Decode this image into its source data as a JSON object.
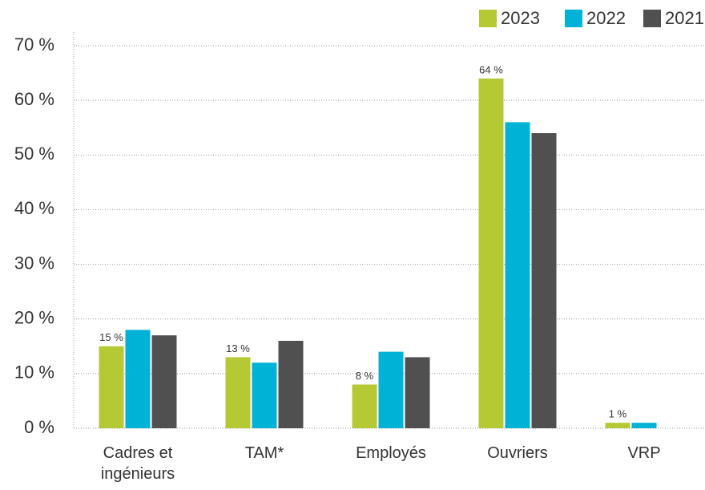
{
  "chart_data": {
    "type": "bar",
    "categories": [
      "Cadres et ingénieurs",
      "TAM*",
      "Employés",
      "Ouvriers",
      "VRP"
    ],
    "series": [
      {
        "name": "2023",
        "color": "#b5c935",
        "values": [
          15,
          13,
          8,
          64,
          1
        ],
        "value_labels": [
          "15 %",
          "13 %",
          "8 %",
          "64 %",
          "1 %"
        ]
      },
      {
        "name": "2022",
        "color": "#00b2d6",
        "values": [
          18,
          12,
          14,
          56,
          1
        ]
      },
      {
        "name": "2021",
        "color": "#505050",
        "values": [
          17,
          16,
          13,
          54,
          null
        ]
      }
    ],
    "ylim": [
      0,
      70
    ],
    "yticks": [
      {
        "value": 0,
        "label": "0 %"
      },
      {
        "value": 10,
        "label": "10 %"
      },
      {
        "value": 20,
        "label": "20 %"
      },
      {
        "value": 30,
        "label": "30 %"
      },
      {
        "value": 40,
        "label": "40 %"
      },
      {
        "value": 50,
        "label": "50 %"
      },
      {
        "value": 60,
        "label": "60 %"
      },
      {
        "value": 70,
        "label": "70 %"
      }
    ],
    "grid": true,
    "legend": "top-right"
  }
}
